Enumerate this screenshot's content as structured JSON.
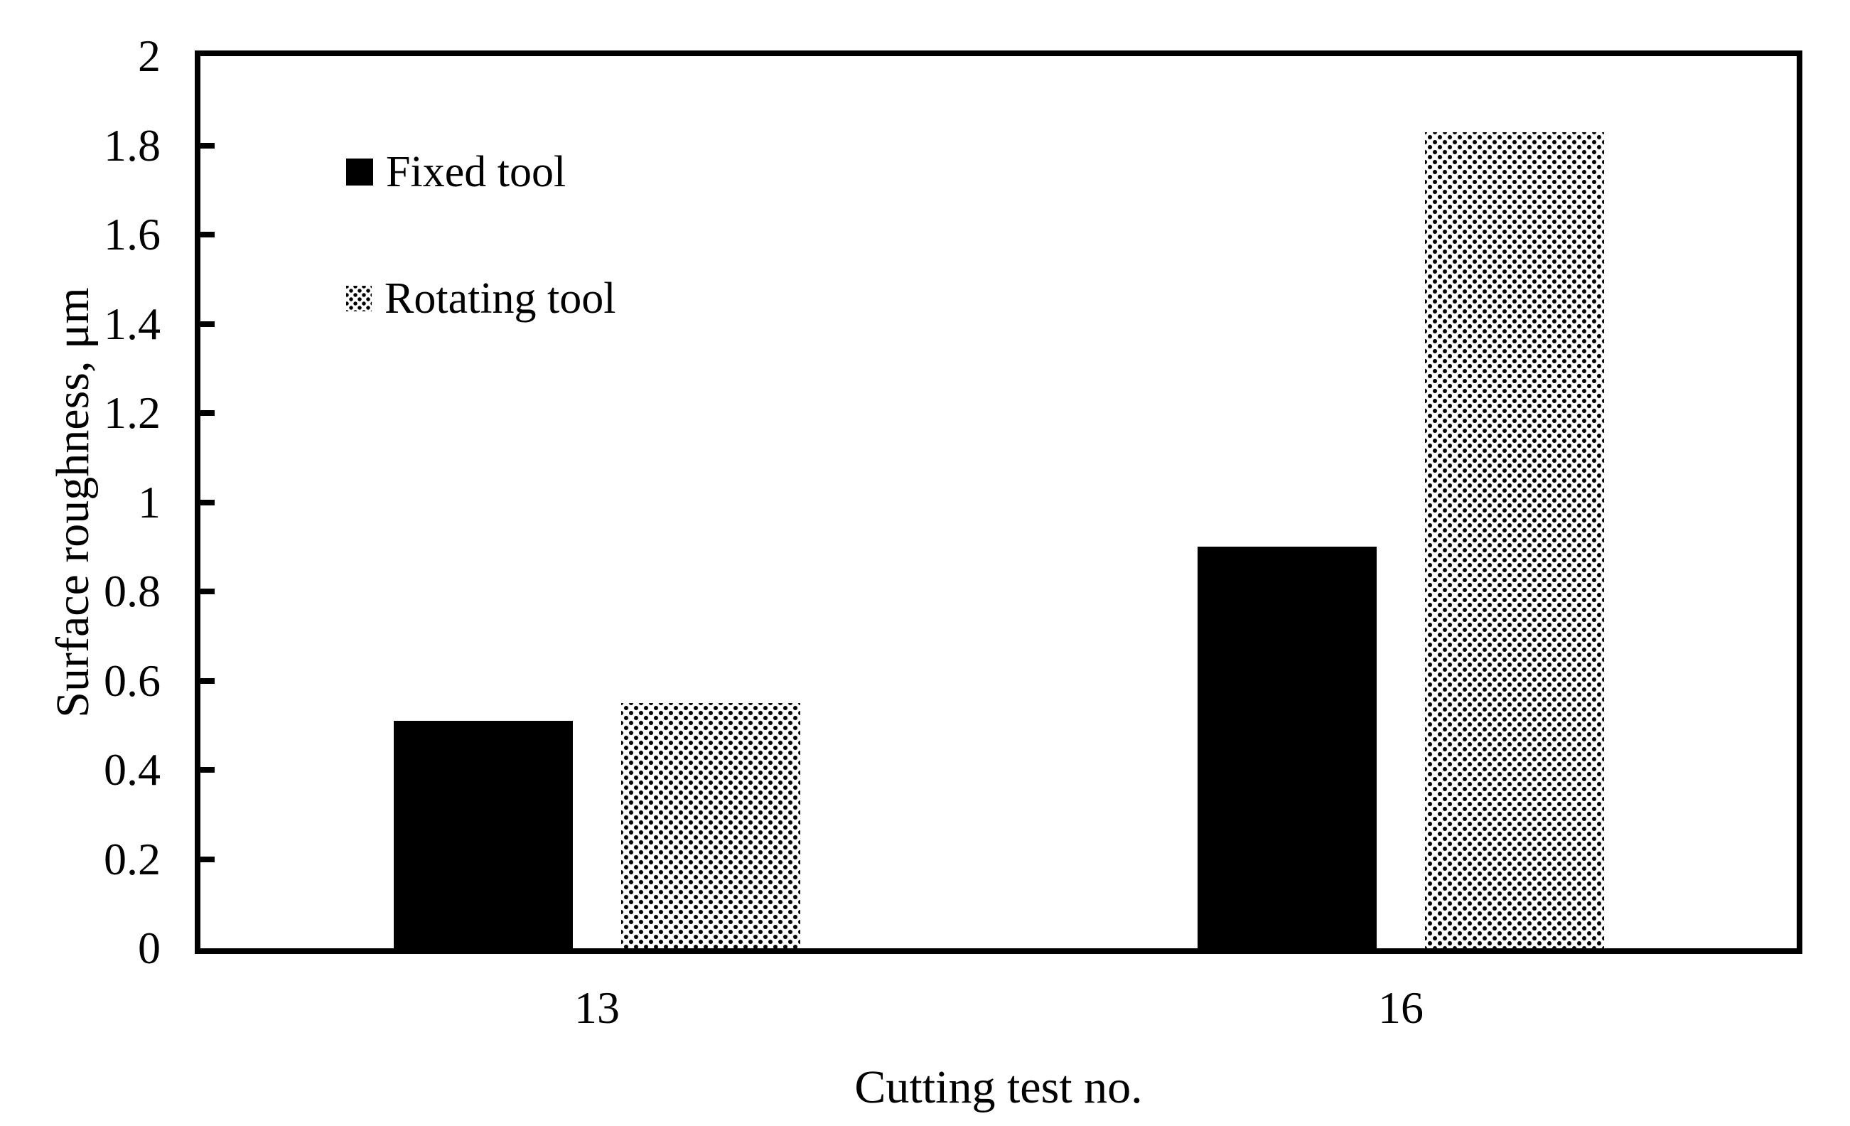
{
  "figure": {
    "background": "#ffffff",
    "axis_color": "#000000",
    "bar_solid_color": "#000000",
    "bar_pattern": "halftone-dots"
  },
  "chart_data": {
    "type": "bar",
    "title": "",
    "xlabel": "Cutting test no.",
    "ylabel": "Surface roughness, μm",
    "categories": [
      "13",
      "16"
    ],
    "series": [
      {
        "name": "Fixed tool",
        "style": "solid",
        "color": "#000000",
        "values": [
          0.51,
          0.9
        ]
      },
      {
        "name": "Rotating tool",
        "style": "dotted",
        "color": "#000000",
        "values": [
          0.55,
          1.83
        ]
      }
    ],
    "ylim": [
      0,
      2
    ],
    "ytick_step": 0.2,
    "yticks": [
      0,
      0.2,
      0.4,
      0.6,
      0.8,
      1,
      1.2,
      1.4,
      1.6,
      1.8,
      2
    ],
    "ytick_labels": [
      "0",
      "0.2",
      "0.4",
      "0.6",
      "0.8",
      "1",
      "1.2",
      "1.4",
      "1.6",
      "1.8",
      "2"
    ],
    "grid": false,
    "legend_position": "upper-left-inside",
    "tick_direction": "in"
  }
}
